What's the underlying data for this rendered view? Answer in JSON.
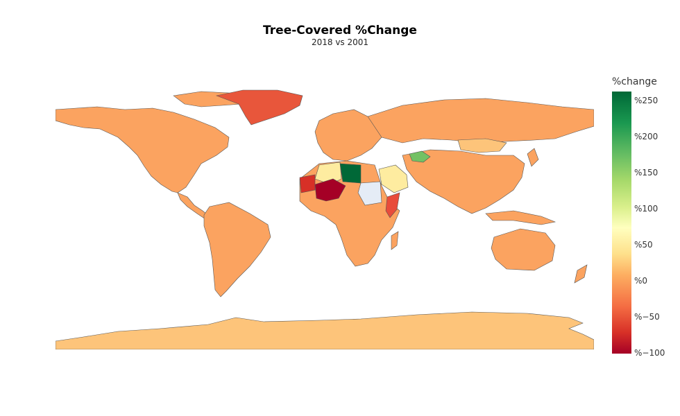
{
  "title": "Tree-Covered %Change",
  "subtitle": "2018 vs 2001",
  "legend": {
    "title": "%change",
    "ticks": [
      "%250",
      "%200",
      "%150",
      "%100",
      "%50",
      "%0",
      "%−50",
      "%−100"
    ]
  },
  "colors": {
    "ocean": "#ffffff",
    "no_data": "#e5ecf6",
    "greenland": "#e8563b",
    "default_land": "#fba360",
    "antarctica": "#fdc47a",
    "libya": "#006837",
    "turkmenistan": "#73c164",
    "mauritania_mali": "#a50026",
    "western_sahara": "#d73027",
    "algeria_saudi": "#feeca0",
    "somalia": "#e84c3b",
    "mongolia": "#fdc47a"
  }
}
